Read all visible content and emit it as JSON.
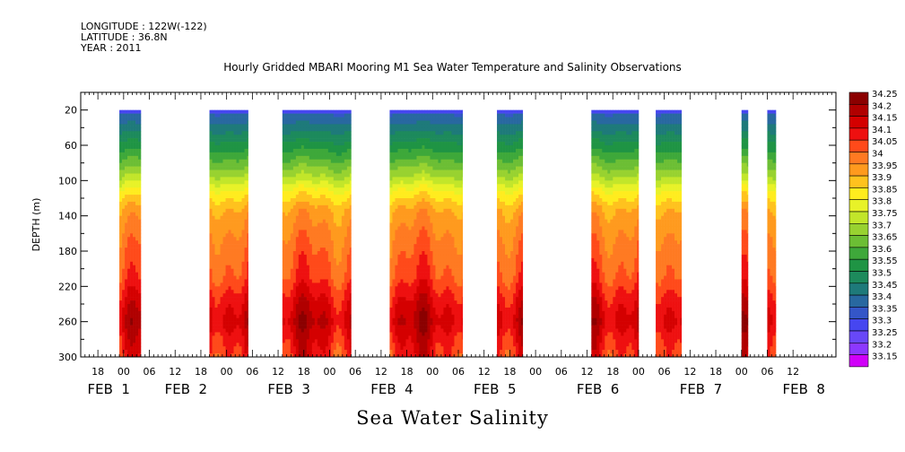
{
  "header": {
    "longitude": "LONGITUDE : 122W(-122)",
    "latitude": "LATITUDE : 36.8N",
    "year": "YEAR : 2011",
    "title": "Hourly Gridded MBARI Mooring M1 Sea Water Temperature and Salinity Observations"
  },
  "footer": {
    "variable": "Sea Water Salinity"
  },
  "chart_data": {
    "type": "heatmap",
    "title": "Hourly Gridded MBARI Mooring M1 Sea Water Temperature and Salinity Observations",
    "xlabel": "",
    "ylabel": "DEPTH (m)",
    "x_range_hours": [
      -10,
      166
    ],
    "y_range": [
      0,
      300
    ],
    "y_inverted": true,
    "y_ticks": [
      20,
      60,
      100,
      140,
      180,
      220,
      260,
      300
    ],
    "x_hour_ticks": [
      {
        "h": -6,
        "label": "18"
      },
      {
        "h": 0,
        "label": "00"
      },
      {
        "h": 6,
        "label": "06"
      },
      {
        "h": 12,
        "label": "12"
      },
      {
        "h": 18,
        "label": "18"
      },
      {
        "h": 24,
        "label": "00"
      },
      {
        "h": 30,
        "label": "06"
      },
      {
        "h": 36,
        "label": "12"
      },
      {
        "h": 42,
        "label": "18"
      },
      {
        "h": 48,
        "label": "00"
      },
      {
        "h": 54,
        "label": "06"
      },
      {
        "h": 60,
        "label": "12"
      },
      {
        "h": 66,
        "label": "18"
      },
      {
        "h": 72,
        "label": "00"
      },
      {
        "h": 78,
        "label": "06"
      },
      {
        "h": 84,
        "label": "12"
      },
      {
        "h": 90,
        "label": "18"
      },
      {
        "h": 96,
        "label": "00"
      },
      {
        "h": 102,
        "label": "06"
      },
      {
        "h": 108,
        "label": "12"
      },
      {
        "h": 114,
        "label": "18"
      },
      {
        "h": 120,
        "label": "00"
      },
      {
        "h": 126,
        "label": "06"
      },
      {
        "h": 132,
        "label": "12"
      },
      {
        "h": 138,
        "label": "18"
      },
      {
        "h": 144,
        "label": "00"
      },
      {
        "h": 150,
        "label": "06"
      },
      {
        "h": 156,
        "label": "12"
      }
    ],
    "date_labels": [
      {
        "h": -3,
        "label": "FEB  1"
      },
      {
        "h": 15,
        "label": "FEB  2"
      },
      {
        "h": 39,
        "label": "FEB  3"
      },
      {
        "h": 63,
        "label": "FEB  4"
      },
      {
        "h": 87,
        "label": "FEB  5"
      },
      {
        "h": 111,
        "label": "FEB  6"
      },
      {
        "h": 135,
        "label": "FEB  7"
      },
      {
        "h": 159,
        "label": "FEB  8"
      }
    ],
    "data_segments_hours": [
      [
        -1,
        4
      ],
      [
        20,
        29
      ],
      [
        37,
        53
      ],
      [
        62,
        79
      ],
      [
        87,
        93
      ],
      [
        109,
        120
      ],
      [
        124,
        130
      ],
      [
        144,
        145.5
      ],
      [
        150,
        152
      ]
    ],
    "colorbar": {
      "levels": [
        "34.25",
        "34.2",
        "34.15",
        "34.1",
        "34.05",
        "34",
        "33.95",
        "33.9",
        "33.85",
        "33.8",
        "33.75",
        "33.7",
        "33.65",
        "33.6",
        "33.55",
        "33.5",
        "33.45",
        "33.4",
        "33.35",
        "33.3",
        "33.25",
        "33.2",
        "33.15"
      ],
      "colors": [
        "#8b0000",
        "#b00000",
        "#d40000",
        "#ee1010",
        "#ff4a1a",
        "#ff7a22",
        "#ff9a1e",
        "#ffc21e",
        "#ffec1e",
        "#e8f228",
        "#c2e62a",
        "#98d230",
        "#6cbe34",
        "#3ea83a",
        "#1f9444",
        "#1d8a5c",
        "#1e7a7a",
        "#2868a0",
        "#3456c8",
        "#4646f0",
        "#6848f8",
        "#8c38ff",
        "#d000f8"
      ]
    },
    "profile": [
      {
        "depth": 20,
        "value": 33.28
      },
      {
        "depth": 25,
        "value": 33.4
      },
      {
        "depth": 45,
        "value": 33.5
      },
      {
        "depth": 70,
        "value": 33.62
      },
      {
        "depth": 95,
        "value": 33.75
      },
      {
        "depth": 115,
        "value": 33.88
      },
      {
        "depth": 135,
        "value": 33.97
      },
      {
        "depth": 170,
        "value": 34.03
      },
      {
        "depth": 210,
        "value": 34.08
      },
      {
        "depth": 235,
        "value": 34.15
      },
      {
        "depth": 260,
        "value": 34.2
      },
      {
        "depth": 280,
        "value": 34.15
      },
      {
        "depth": 300,
        "value": 34.12
      }
    ]
  }
}
